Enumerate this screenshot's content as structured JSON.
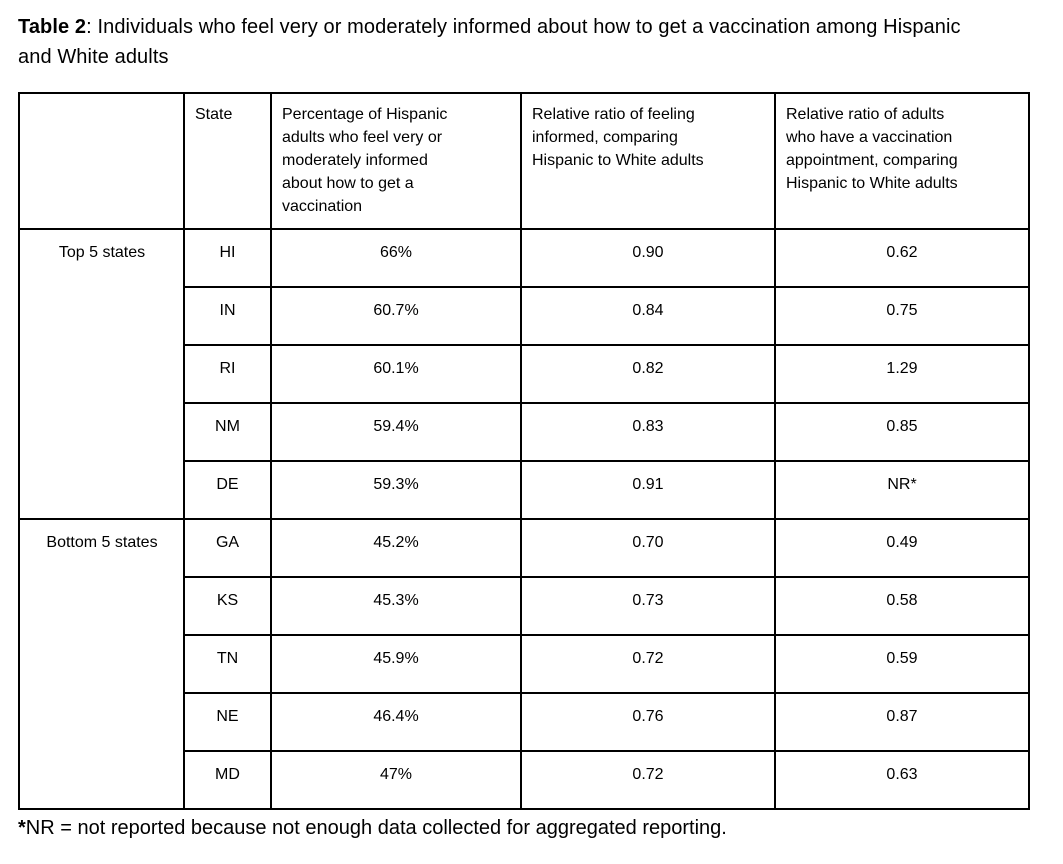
{
  "page": {
    "title_bold": "Table 2",
    "title_rest": ": Individuals who feel very or moderately informed about how to get a vaccination among Hispanic and White adults"
  },
  "table": {
    "headers": {
      "corner": "",
      "state": "State",
      "pct": "Percentage of Hispanic adults who feel very or moderately informed about how to get a vaccination",
      "ratio_informed": "Relative ratio of feeling informed, comparing Hispanic to White adults",
      "ratio_appointment": "Relative ratio of adults who have a vaccination appointment, comparing Hispanic to White adults"
    },
    "groups": [
      {
        "label": "Top 5 states",
        "rows": [
          {
            "state": "HI",
            "pct": "66%",
            "ratio_informed": "0.90",
            "ratio_appointment": "0.62"
          },
          {
            "state": "IN",
            "pct": "60.7%",
            "ratio_informed": "0.84",
            "ratio_appointment": "0.75"
          },
          {
            "state": "RI",
            "pct": "60.1%",
            "ratio_informed": "0.82",
            "ratio_appointment": "1.29"
          },
          {
            "state": "NM",
            "pct": "59.4%",
            "ratio_informed": "0.83",
            "ratio_appointment": "0.85"
          },
          {
            "state": "DE",
            "pct": "59.3%",
            "ratio_informed": "0.91",
            "ratio_appointment": "NR*"
          }
        ]
      },
      {
        "label": "Bottom 5 states",
        "rows": [
          {
            "state": "GA",
            "pct": "45.2%",
            "ratio_informed": "0.70",
            "ratio_appointment": "0.49"
          },
          {
            "state": "KS",
            "pct": "45.3%",
            "ratio_informed": "0.73",
            "ratio_appointment": "0.58"
          },
          {
            "state": "TN",
            "pct": "45.9%",
            "ratio_informed": "0.72",
            "ratio_appointment": "0.59"
          },
          {
            "state": "NE",
            "pct": "46.4%",
            "ratio_informed": "0.76",
            "ratio_appointment": "0.87"
          },
          {
            "state": "MD",
            "pct": "47%",
            "ratio_informed": "0.72",
            "ratio_appointment": "0.63"
          }
        ]
      }
    ]
  },
  "footnote": {
    "marker": "*",
    "text": "NR = not reported because not enough data collected for aggregated reporting."
  },
  "colors": {
    "text": "#000000",
    "border": "#000000",
    "background": "#ffffff"
  }
}
